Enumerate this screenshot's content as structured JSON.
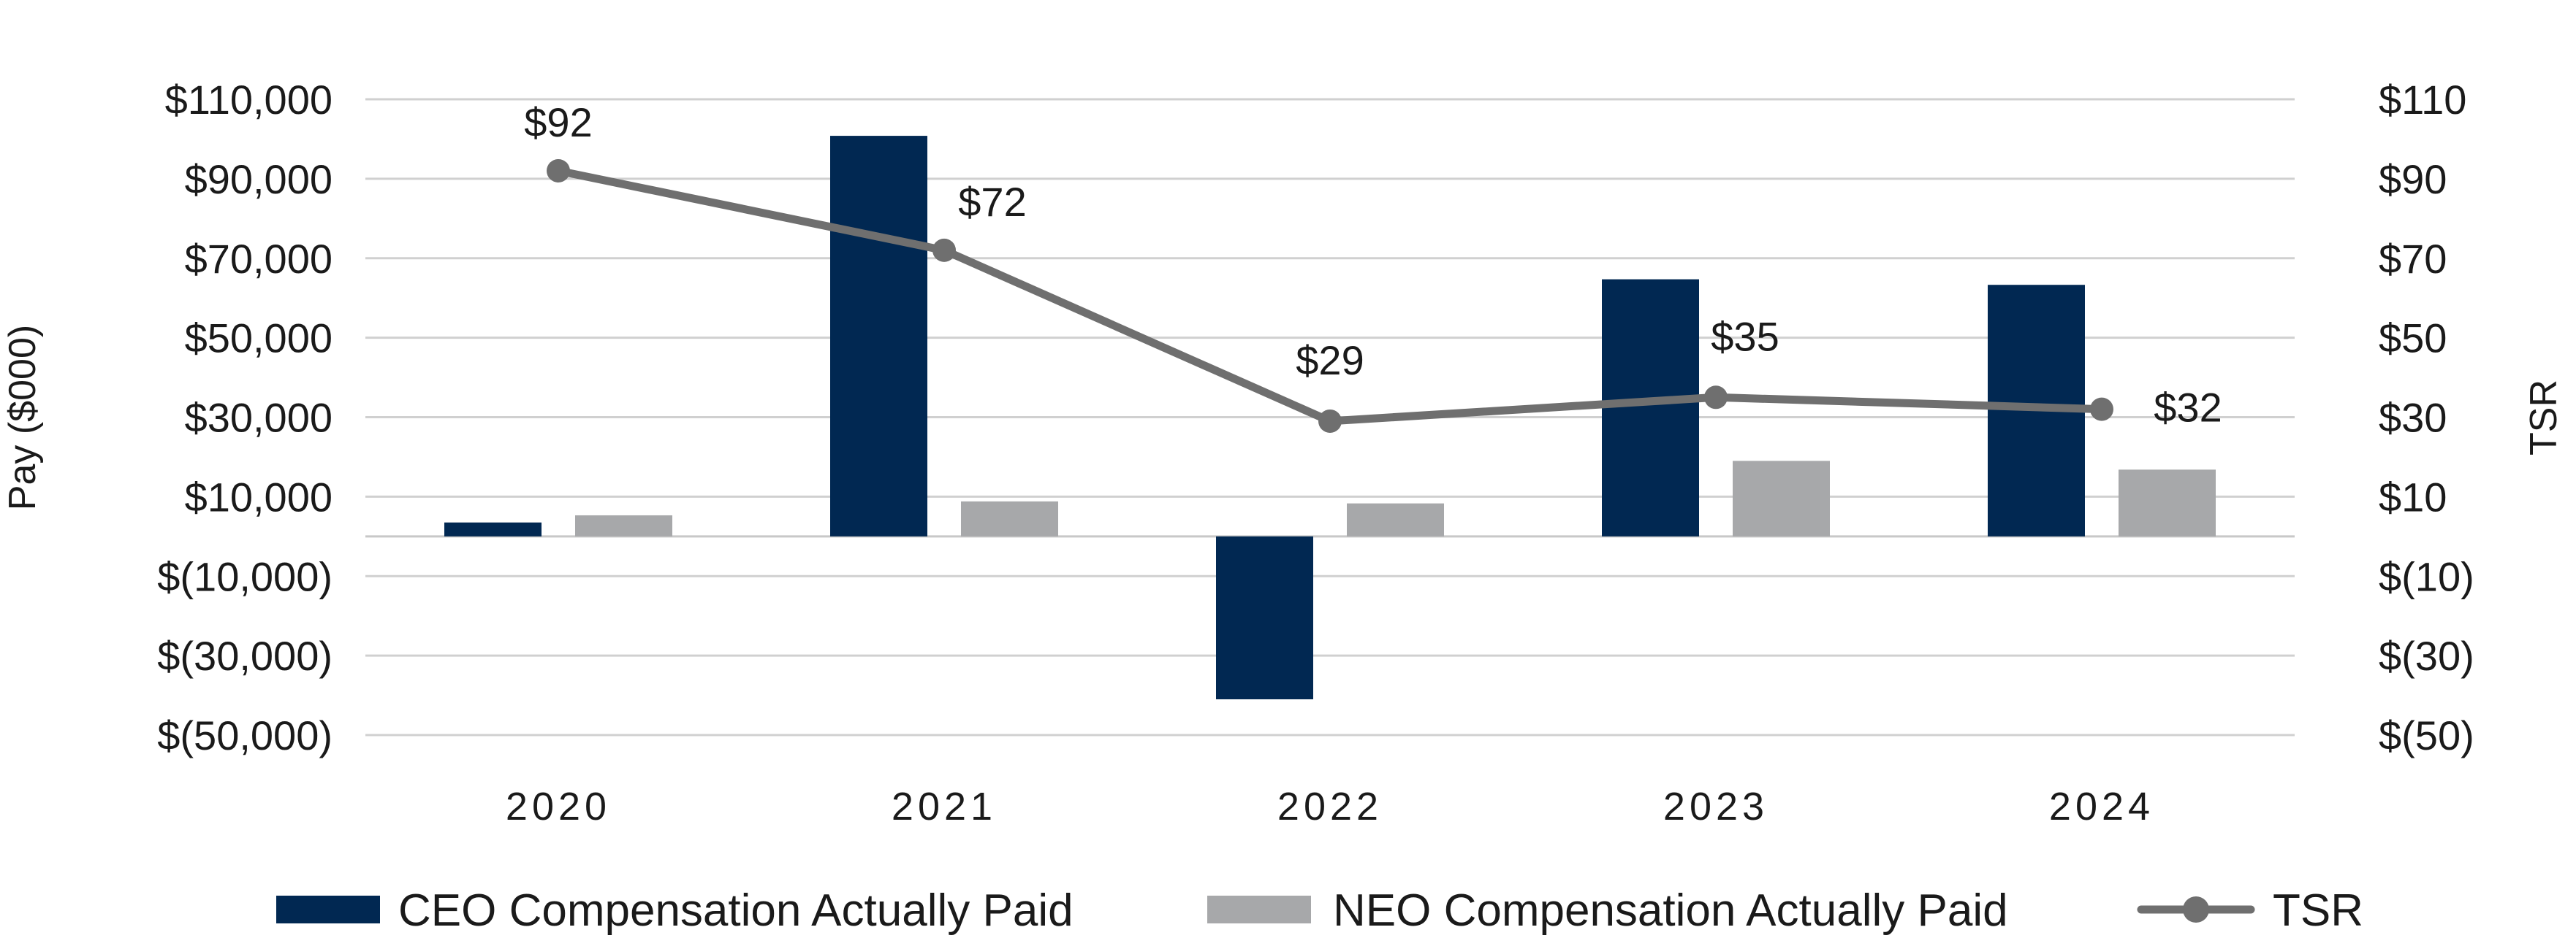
{
  "chart_data": {
    "type": "bar",
    "categories": [
      "2020",
      "2021",
      "2022",
      "2023",
      "2024"
    ],
    "series": [
      {
        "name": "CEO Compensation Actually Paid",
        "kind": "bar",
        "axis": "left",
        "color": "#012852",
        "values": [
          3500,
          100800,
          -41000,
          64700,
          63300
        ]
      },
      {
        "name": "NEO Compensation Actually Paid",
        "kind": "bar",
        "axis": "left",
        "color": "#a7a8aa",
        "values": [
          5300,
          8800,
          8300,
          19000,
          16800
        ]
      },
      {
        "name": "TSR",
        "kind": "line",
        "axis": "right",
        "color": "#6f6f6f",
        "values": [
          92,
          72,
          29,
          35,
          32
        ],
        "labels": [
          "$92",
          "$72",
          "$29",
          "$35",
          "$32"
        ]
      }
    ],
    "ylabel": "Pay ($000)",
    "y2label": "TSR",
    "ylim": [
      -50000,
      110000
    ],
    "y2lim": [
      -50,
      110
    ],
    "yticks": [
      {
        "value": 110000,
        "label": "$110,000"
      },
      {
        "value": 90000,
        "label": "$90,000"
      },
      {
        "value": 70000,
        "label": "$70,000"
      },
      {
        "value": 50000,
        "label": "$50,000"
      },
      {
        "value": 30000,
        "label": "$30,000"
      },
      {
        "value": 10000,
        "label": "$10,000"
      },
      {
        "value": -10000,
        "label": "$(10,000)"
      },
      {
        "value": -30000,
        "label": "$(30,000)"
      },
      {
        "value": -50000,
        "label": "$(50,000)"
      }
    ],
    "y2ticks": [
      {
        "value": 110,
        "label": "$110"
      },
      {
        "value": 90,
        "label": "$90"
      },
      {
        "value": 70,
        "label": "$70"
      },
      {
        "value": 50,
        "label": "$50"
      },
      {
        "value": 30,
        "label": "$30"
      },
      {
        "value": 10,
        "label": "$10"
      },
      {
        "value": -10,
        "label": "$(10)"
      },
      {
        "value": -30,
        "label": "$(30)"
      },
      {
        "value": -50,
        "label": "$(50)"
      }
    ],
    "grid": true,
    "legend": "bottom"
  }
}
